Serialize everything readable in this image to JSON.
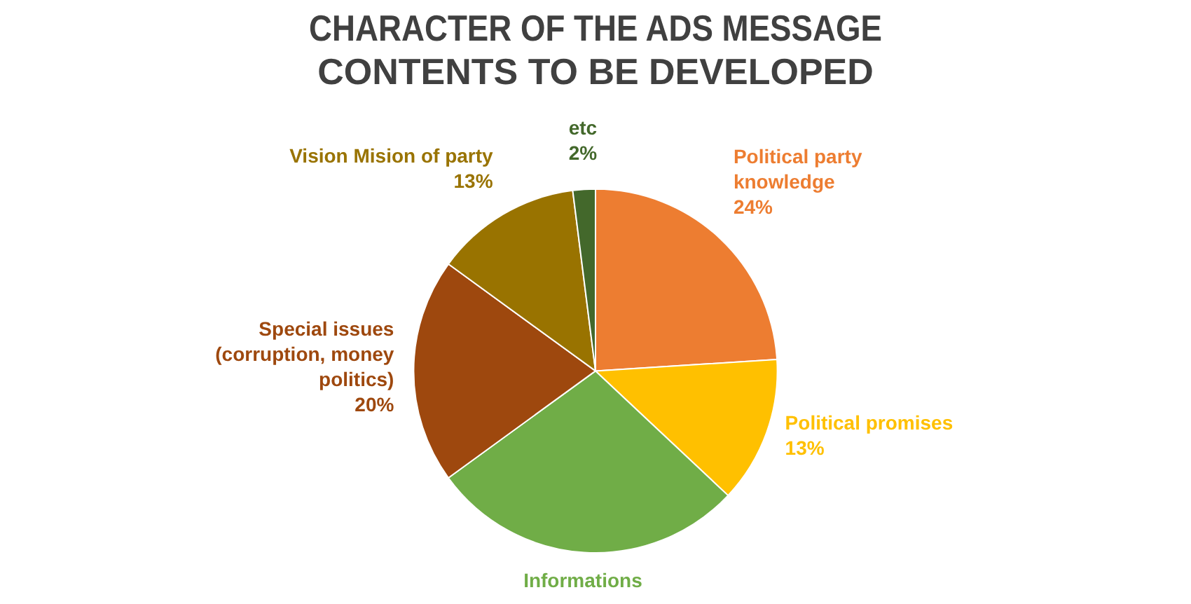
{
  "chart_data": {
    "type": "pie",
    "title": "CHARACTER OF THE ADS MESSAGE CONTENTS TO BE DEVELOPED",
    "categories": [
      "Political party knowledge",
      "Political promises",
      "Informations",
      "Special issues (corruption, money politics)",
      "Vision Mision of party",
      "etc"
    ],
    "values": [
      24,
      13,
      28,
      20,
      13,
      2
    ],
    "colors": [
      "#ed7d31",
      "#ffc000",
      "#70ad47",
      "#9e480e",
      "#997300",
      "#43682b"
    ],
    "value_labels": [
      "24%",
      "13%",
      null,
      "20%",
      "13%",
      "2%"
    ],
    "legend": false
  }
}
